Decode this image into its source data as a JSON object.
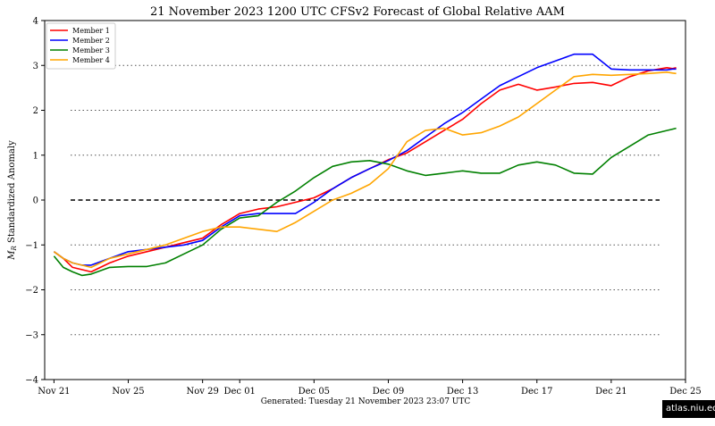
{
  "chart_data": {
    "type": "line",
    "title": "21  November  2023 1200 UTC   CFSv2 Forecast of Global Relative AAM",
    "ylabel": "M_R Standardized Anomaly",
    "ylabel_main": "M",
    "ylabel_sub": "R",
    "ylabel_rest": " Standardized Anomaly",
    "xlabel": "",
    "footer": "Generated: Tuesday  21  November  2023  23:07 UTC",
    "xlim": [
      -0.5,
      34
    ],
    "ylim": [
      -4,
      4
    ],
    "yticks": [
      -4,
      -3,
      -2,
      -1,
      0,
      1,
      2,
      3,
      4
    ],
    "xticks": [
      {
        "x": 0,
        "label": "Nov 21"
      },
      {
        "x": 4,
        "label": "Nov 25"
      },
      {
        "x": 8,
        "label": "Nov 29"
      },
      {
        "x": 10,
        "label": "Dec 01"
      },
      {
        "x": 14,
        "label": "Dec 05"
      },
      {
        "x": 18,
        "label": "Dec 09"
      },
      {
        "x": 22,
        "label": "Dec 13"
      },
      {
        "x": 26,
        "label": "Dec 17"
      },
      {
        "x": 30,
        "label": "Dec 21"
      },
      {
        "x": 34,
        "label": "Dec 25"
      }
    ],
    "gridlines": [
      -3,
      -2,
      -1,
      1,
      2,
      3
    ],
    "zero_line": 0,
    "legend_position": "top-left",
    "series": [
      {
        "name": "Member 1",
        "color": "#ff0000",
        "x": [
          0,
          0.5,
          1,
          1.5,
          2,
          3,
          4,
          5,
          6,
          7,
          8,
          9,
          10,
          11,
          12,
          13,
          14,
          15,
          16,
          17,
          18,
          19,
          20,
          21,
          22,
          23,
          24,
          25,
          26,
          27,
          28,
          29,
          30,
          31,
          32,
          33,
          33.3,
          33.5
        ],
        "y": [
          -1.15,
          -1.3,
          -1.5,
          -1.55,
          -1.6,
          -1.4,
          -1.25,
          -1.15,
          -1.05,
          -0.95,
          -0.85,
          -0.55,
          -0.3,
          -0.2,
          -0.15,
          -0.05,
          0.05,
          0.25,
          0.5,
          0.7,
          0.9,
          1.05,
          1.3,
          1.55,
          1.8,
          2.15,
          2.45,
          2.58,
          2.45,
          2.52,
          2.6,
          2.62,
          2.55,
          2.75,
          2.88,
          2.95,
          2.93,
          2.95
        ]
      },
      {
        "name": "Member 2",
        "color": "#0000ff",
        "x": [
          0,
          0.5,
          1,
          1.5,
          2,
          3,
          4,
          5,
          6,
          7,
          8,
          9,
          10,
          11,
          12,
          13,
          14,
          15,
          16,
          17,
          18,
          19,
          20,
          21,
          22,
          23,
          24,
          25,
          26,
          27,
          28,
          29,
          30,
          31,
          32,
          33,
          33.3,
          33.5
        ],
        "y": [
          -1.15,
          -1.3,
          -1.4,
          -1.45,
          -1.45,
          -1.3,
          -1.15,
          -1.1,
          -1.05,
          -1.0,
          -0.9,
          -0.6,
          -0.35,
          -0.3,
          -0.3,
          -0.3,
          -0.05,
          0.25,
          0.5,
          0.7,
          0.88,
          1.1,
          1.4,
          1.7,
          1.95,
          2.25,
          2.55,
          2.75,
          2.95,
          3.1,
          3.25,
          3.25,
          2.92,
          2.9,
          2.9,
          2.9,
          2.92,
          2.92
        ]
      },
      {
        "name": "Member 3",
        "color": "#008000",
        "x": [
          0,
          0.5,
          1,
          1.5,
          2,
          3,
          4,
          5,
          6,
          7,
          8,
          9,
          10,
          11,
          12,
          13,
          14,
          15,
          16,
          17,
          18,
          19,
          20,
          21,
          22,
          23,
          24,
          25,
          26,
          27,
          28,
          29,
          30,
          31,
          32,
          33,
          33.3,
          33.5
        ],
        "y": [
          -1.25,
          -1.5,
          -1.6,
          -1.68,
          -1.65,
          -1.5,
          -1.48,
          -1.48,
          -1.4,
          -1.2,
          -1.0,
          -0.65,
          -0.4,
          -0.35,
          -0.05,
          0.2,
          0.5,
          0.75,
          0.85,
          0.88,
          0.8,
          0.65,
          0.55,
          0.6,
          0.65,
          0.6,
          0.6,
          0.78,
          0.85,
          0.78,
          0.6,
          0.58,
          0.95,
          1.2,
          1.45,
          1.55,
          1.58,
          1.6
        ]
      },
      {
        "name": "Member 4",
        "color": "#ffa500",
        "x": [
          0,
          0.5,
          1,
          1.5,
          2,
          3,
          4,
          5,
          6,
          7,
          8,
          9,
          10,
          11,
          12,
          13,
          14,
          15,
          16,
          17,
          18,
          19,
          20,
          21,
          22,
          23,
          24,
          25,
          26,
          27,
          28,
          29,
          30,
          31,
          32,
          33,
          33.3,
          33.5
        ],
        "y": [
          -1.15,
          -1.3,
          -1.4,
          -1.45,
          -1.5,
          -1.3,
          -1.2,
          -1.1,
          -1.0,
          -0.85,
          -0.7,
          -0.6,
          -0.6,
          -0.65,
          -0.7,
          -0.5,
          -0.25,
          0.0,
          0.15,
          0.35,
          0.7,
          1.3,
          1.55,
          1.6,
          1.45,
          1.5,
          1.65,
          1.85,
          2.15,
          2.45,
          2.75,
          2.8,
          2.78,
          2.8,
          2.82,
          2.85,
          2.83,
          2.82
        ]
      }
    ]
  },
  "credit": "atlas.niu.edu"
}
